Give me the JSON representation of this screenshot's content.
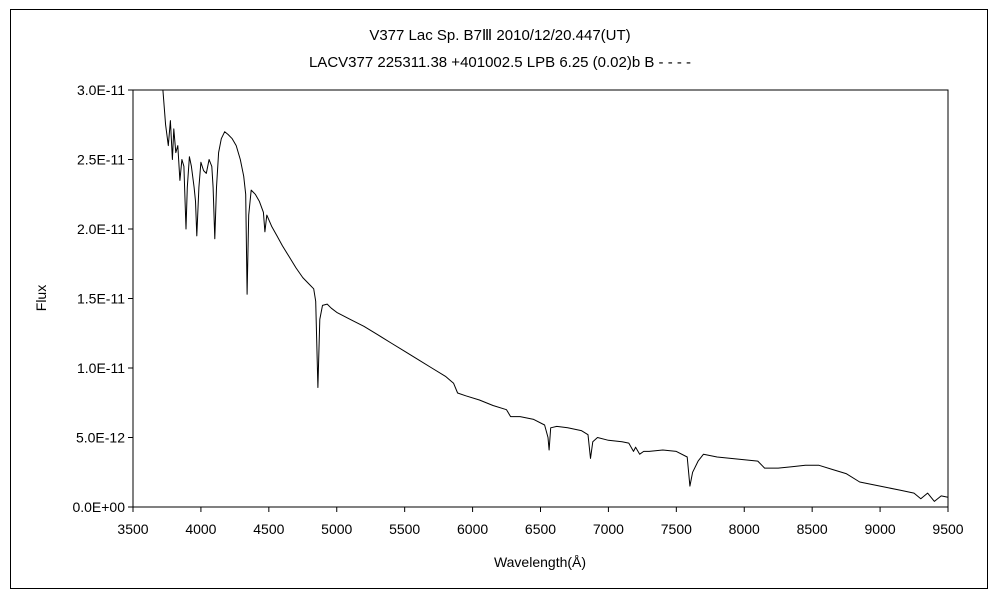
{
  "chart_data": {
    "type": "line",
    "title": "V377 Lac    Sp. B7Ⅲ    2010/12/20.447(UT)",
    "subtitle": "LACV377 225311.38 +401002.5 LPB 6.25 (0.02)b B - - - -",
    "xlabel": "Wavelength(Å)",
    "ylabel": "Flux",
    "xlim": [
      3500,
      9500
    ],
    "ylim": [
      0,
      3e-11
    ],
    "grid": false,
    "x_ticks": [
      3500,
      4000,
      4500,
      5000,
      5500,
      6000,
      6500,
      7000,
      7500,
      8000,
      8500,
      9000,
      9500
    ],
    "x_tick_labels": [
      "3500",
      "4000",
      "4500",
      "5000",
      "5500",
      "6000",
      "6500",
      "7000",
      "7500",
      "8000",
      "8500",
      "9000",
      "9500"
    ],
    "y_ticks": [
      0,
      5e-12,
      1e-11,
      1.5e-11,
      2e-11,
      2.5e-11,
      3e-11
    ],
    "y_tick_labels": [
      "0.0E+00",
      "5.0E-12",
      "1.0E-11",
      "1.5E-11",
      "2.0E-11",
      "2.5E-11",
      "3.0E-11"
    ],
    "line_color": "#000000",
    "series": [
      {
        "points": [
          [
            3720,
            3e-11
          ],
          [
            3740,
            2.75e-11
          ],
          [
            3760,
            2.6e-11
          ],
          [
            3775,
            2.78e-11
          ],
          [
            3790,
            2.5e-11
          ],
          [
            3800,
            2.72e-11
          ],
          [
            3815,
            2.55e-11
          ],
          [
            3830,
            2.6e-11
          ],
          [
            3845,
            2.35e-11
          ],
          [
            3860,
            2.5e-11
          ],
          [
            3875,
            2.45e-11
          ],
          [
            3890,
            2e-11
          ],
          [
            3900,
            2.3e-11
          ],
          [
            3915,
            2.52e-11
          ],
          [
            3930,
            2.45e-11
          ],
          [
            3950,
            2.3e-11
          ],
          [
            3960,
            2.2e-11
          ],
          [
            3970,
            1.95e-11
          ],
          [
            3985,
            2.3e-11
          ],
          [
            4000,
            2.48e-11
          ],
          [
            4020,
            2.42e-11
          ],
          [
            4040,
            2.4e-11
          ],
          [
            4060,
            2.5e-11
          ],
          [
            4080,
            2.45e-11
          ],
          [
            4090,
            2.3e-11
          ],
          [
            4102,
            1.93e-11
          ],
          [
            4115,
            2.3e-11
          ],
          [
            4130,
            2.55e-11
          ],
          [
            4150,
            2.65e-11
          ],
          [
            4175,
            2.7e-11
          ],
          [
            4200,
            2.68e-11
          ],
          [
            4230,
            2.65e-11
          ],
          [
            4260,
            2.6e-11
          ],
          [
            4290,
            2.5e-11
          ],
          [
            4315,
            2.38e-11
          ],
          [
            4330,
            2.25e-11
          ],
          [
            4340,
            1.53e-11
          ],
          [
            4352,
            2.1e-11
          ],
          [
            4370,
            2.28e-11
          ],
          [
            4400,
            2.25e-11
          ],
          [
            4430,
            2.2e-11
          ],
          [
            4460,
            2.12e-11
          ],
          [
            4471,
            1.98e-11
          ],
          [
            4485,
            2.1e-11
          ],
          [
            4520,
            2.02e-11
          ],
          [
            4560,
            1.95e-11
          ],
          [
            4600,
            1.88e-11
          ],
          [
            4650,
            1.8e-11
          ],
          [
            4700,
            1.72e-11
          ],
          [
            4750,
            1.65e-11
          ],
          [
            4800,
            1.6e-11
          ],
          [
            4830,
            1.57e-11
          ],
          [
            4845,
            1.48e-11
          ],
          [
            4861,
            8.6e-12
          ],
          [
            4875,
            1.35e-11
          ],
          [
            4895,
            1.45e-11
          ],
          [
            4930,
            1.46e-11
          ],
          [
            4960,
            1.43e-11
          ],
          [
            5000,
            1.4e-11
          ],
          [
            5100,
            1.35e-11
          ],
          [
            5200,
            1.3e-11
          ],
          [
            5300,
            1.24e-11
          ],
          [
            5400,
            1.18e-11
          ],
          [
            5500,
            1.12e-11
          ],
          [
            5600,
            1.06e-11
          ],
          [
            5700,
            1e-11
          ],
          [
            5800,
            9.4e-12
          ],
          [
            5860,
            8.9e-12
          ],
          [
            5890,
            8.2e-12
          ],
          [
            5950,
            8e-12
          ],
          [
            6050,
            7.7e-12
          ],
          [
            6150,
            7.3e-12
          ],
          [
            6250,
            7e-12
          ],
          [
            6280,
            6.5e-12
          ],
          [
            6350,
            6.5e-12
          ],
          [
            6450,
            6.3e-12
          ],
          [
            6530,
            5.9e-12
          ],
          [
            6555,
            5e-12
          ],
          [
            6563,
            4.1e-12
          ],
          [
            6575,
            5.7e-12
          ],
          [
            6620,
            5.8e-12
          ],
          [
            6700,
            5.7e-12
          ],
          [
            6800,
            5.5e-12
          ],
          [
            6850,
            5.2e-12
          ],
          [
            6868,
            3.5e-12
          ],
          [
            6885,
            4.7e-12
          ],
          [
            6920,
            5e-12
          ],
          [
            7000,
            4.8e-12
          ],
          [
            7100,
            4.7e-12
          ],
          [
            7150,
            4.6e-12
          ],
          [
            7185,
            4e-12
          ],
          [
            7200,
            4.3e-12
          ],
          [
            7230,
            3.8e-12
          ],
          [
            7260,
            4e-12
          ],
          [
            7300,
            4e-12
          ],
          [
            7400,
            4.1e-12
          ],
          [
            7500,
            4e-12
          ],
          [
            7580,
            3.6e-12
          ],
          [
            7600,
            1.5e-12
          ],
          [
            7620,
            2.5e-12
          ],
          [
            7660,
            3.3e-12
          ],
          [
            7700,
            3.8e-12
          ],
          [
            7800,
            3.6e-12
          ],
          [
            7900,
            3.5e-12
          ],
          [
            8000,
            3.4e-12
          ],
          [
            8100,
            3.3e-12
          ],
          [
            8150,
            2.8e-12
          ],
          [
            8250,
            2.8e-12
          ],
          [
            8350,
            2.9e-12
          ],
          [
            8450,
            3e-12
          ],
          [
            8550,
            3e-12
          ],
          [
            8650,
            2.7e-12
          ],
          [
            8750,
            2.4e-12
          ],
          [
            8850,
            1.8e-12
          ],
          [
            8950,
            1.6e-12
          ],
          [
            9050,
            1.4e-12
          ],
          [
            9150,
            1.2e-12
          ],
          [
            9250,
            1e-12
          ],
          [
            9300,
            6e-13
          ],
          [
            9350,
            1e-12
          ],
          [
            9400,
            4e-13
          ],
          [
            9450,
            8e-13
          ],
          [
            9500,
            7e-13
          ]
        ]
      }
    ]
  }
}
